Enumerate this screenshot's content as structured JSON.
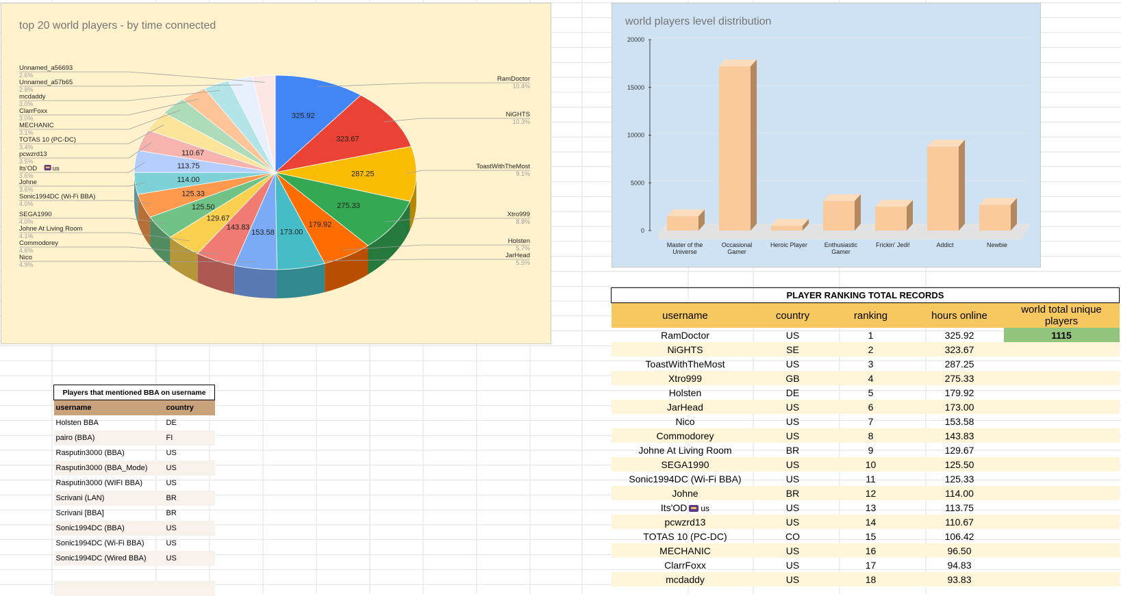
{
  "colors": {
    "pie_panel_bg": "#fff2cc",
    "bar_panel_bg": "#cfe2f3",
    "bar_fill": "#f9cb9c",
    "rank_header": "#f6c85f",
    "bba_header": "#c8a27a",
    "total_cell": "#93c47d"
  },
  "icons": [
    "ods-flag-icon"
  ],
  "pie_chart": {
    "title": "top 20 world players - by time connected",
    "chart_data": {
      "type": "pie",
      "style": "3d",
      "slice_value_labels": [
        "325.92",
        "323.67",
        "287.25",
        "275.33",
        "179.92",
        "173.00",
        "153.58",
        "143.83",
        "129.67",
        "125.50",
        "125.33",
        "114.00",
        "113.75",
        "110.67"
      ],
      "slices": [
        {
          "label": "RamDoctor",
          "value": 325.92,
          "percent": "10.4%",
          "color": "#4285f4"
        },
        {
          "label": "NiGHTS",
          "value": 323.67,
          "percent": "10.3%",
          "color": "#ea4335"
        },
        {
          "label": "ToastWithTheMost",
          "value": 287.25,
          "percent": "9.1%",
          "color": "#fbbc04"
        },
        {
          "label": "Xtro999",
          "value": 275.33,
          "percent": "8.8%",
          "color": "#34a853"
        },
        {
          "label": "Holsten",
          "value": 179.92,
          "percent": "5.7%",
          "color": "#ff6d01"
        },
        {
          "label": "JarHead",
          "value": 173.0,
          "percent": "5.5%",
          "color": "#46bdc6"
        },
        {
          "label": "Nico",
          "value": 153.58,
          "percent": "4.9%",
          "color": "#7baaf7"
        },
        {
          "label": "Commodorey",
          "value": 143.83,
          "percent": "4.6%",
          "color": "#f07b72"
        },
        {
          "label": "Johne At Living Room",
          "value": 129.67,
          "percent": "4.1%",
          "color": "#fcd04f"
        },
        {
          "label": "SEGA1990",
          "value": 125.5,
          "percent": "4.0%",
          "color": "#71c287"
        },
        {
          "label": "Sonic1994DC (Wi-Fi BBA)",
          "value": 125.33,
          "percent": "4.0%",
          "color": "#ff994d"
        },
        {
          "label": "Johne",
          "value": 114.0,
          "percent": "3.6%",
          "color": "#7ed1d7"
        },
        {
          "label": "Its'OD us",
          "value": 113.75,
          "percent": "3.6%",
          "color": "#b3cefb"
        },
        {
          "label": "pcwzrd13",
          "value": 110.67,
          "percent": "3.5%",
          "color": "#f7b4ae"
        },
        {
          "label": "TOTAS 10 (PC-DC)",
          "value": 106.42,
          "percent": "3.4%",
          "color": "#fde49b"
        },
        {
          "label": "MECHANIC",
          "value": 96.5,
          "percent": "3.1%",
          "color": "#aedcba"
        },
        {
          "label": "ClarrFoxx",
          "value": 94.83,
          "percent": "3.0%",
          "color": "#ffc599"
        },
        {
          "label": "mcdaddy",
          "value": 93.83,
          "percent": "3.0%",
          "color": "#b2e4e8"
        },
        {
          "label": "Unnamed_a57b65",
          "value": 87.75,
          "percent": "2.8%",
          "color": "#e8effd"
        },
        {
          "label": "Unnamed_a56693",
          "value": 81.58,
          "percent": "2.6%",
          "color": "#fde7e5"
        }
      ]
    }
  },
  "bar_chart": {
    "title": "world players level distribution",
    "chart_data": {
      "type": "bar",
      "style": "3d",
      "categories": [
        [
          "Master of the",
          "Universe"
        ],
        [
          "Occasional",
          "Gamer"
        ],
        [
          "Heroic Player"
        ],
        [
          "Enthusiastic",
          "Gamer"
        ],
        [
          "Frickin' Jedi!"
        ],
        [
          "Addict"
        ],
        [
          "Newbie"
        ]
      ],
      "values": [
        1500,
        17200,
        500,
        3100,
        2500,
        8800,
        2700
      ],
      "ylim": [
        0,
        20000
      ],
      "yticks": [
        "0",
        "5000",
        "10000",
        "15000",
        "20000"
      ],
      "grid": true,
      "bar_color": "#f9cb9c"
    }
  },
  "bba_table": {
    "title": "Players that mentioned BBA on username",
    "columns": [
      "username",
      "country"
    ],
    "rows": [
      [
        "Holsten BBA",
        "DE"
      ],
      [
        "pairo (BBA)",
        "FI"
      ],
      [
        "Rasputin3000 (BBA)",
        "US"
      ],
      [
        "Rasputin3000 (BBA_Mode)",
        "US"
      ],
      [
        "Rasputin3000 (WIFI BBA)",
        "US"
      ],
      [
        "Scrivani (LAN)",
        "BR"
      ],
      [
        "Scrivani [BBA]",
        "BR"
      ],
      [
        "Sonic1994DC (BBA)",
        "US"
      ],
      [
        "Sonic1994DC (Wi-Fi BBA)",
        "US"
      ],
      [
        "Sonic1994DC (Wired BBA)",
        "US"
      ]
    ]
  },
  "ranking_table": {
    "title": "PLAYER RANKING TOTAL RECORDS",
    "columns": [
      "username",
      "country",
      "ranking",
      "hours online",
      "world total unique players"
    ],
    "world_total": "1115",
    "rows": [
      [
        "RamDoctor",
        "US",
        "1",
        "325.92"
      ],
      [
        "NiGHTS",
        "SE",
        "2",
        "323.67"
      ],
      [
        "ToastWithTheMost",
        "US",
        "3",
        "287.25"
      ],
      [
        "Xtro999",
        "GB",
        "4",
        "275.33"
      ],
      [
        "Holsten",
        "DE",
        "5",
        "179.92"
      ],
      [
        "JarHead",
        "US",
        "6",
        "173.00"
      ],
      [
        "Nico",
        "US",
        "7",
        "153.58"
      ],
      [
        "Commodorey",
        "US",
        "8",
        "143.83"
      ],
      [
        "Johne At Living Room",
        "BR",
        "9",
        "129.67"
      ],
      [
        "SEGA1990",
        "US",
        "10",
        "125.50"
      ],
      [
        "Sonic1994DC (Wi-Fi BBA)",
        "US",
        "11",
        "125.33"
      ],
      [
        "Johne",
        "BR",
        "12",
        "114.00"
      ],
      [
        "Its'OD us",
        "US",
        "13",
        "113.75"
      ],
      [
        "pcwzrd13",
        "US",
        "14",
        "110.67"
      ],
      [
        "TOTAS 10 (PC-DC)",
        "CO",
        "15",
        "106.42"
      ],
      [
        "MECHANIC",
        "US",
        "16",
        "96.50"
      ],
      [
        "ClarrFoxx",
        "US",
        "17",
        "94.83"
      ],
      [
        "mcdaddy",
        "US",
        "18",
        "93.83"
      ]
    ]
  }
}
